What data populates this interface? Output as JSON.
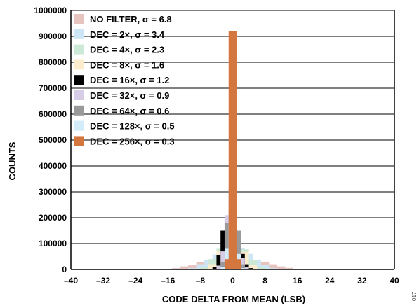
{
  "figure_id": "017",
  "chart_data": {
    "type": "bar",
    "xlabel": "CODE DELTA FROM MEAN  (LSB)",
    "ylabel": "COUNTS",
    "xlim": [
      -40,
      40
    ],
    "ylim": [
      0,
      1000000
    ],
    "x_ticks": [
      -40,
      -32,
      -24,
      -16,
      -8,
      0,
      8,
      16,
      24,
      32,
      40
    ],
    "x_tick_labels": [
      "–40",
      "–32",
      "–24",
      "–16",
      "–8",
      "0",
      "8",
      "16",
      "24",
      "32",
      "40"
    ],
    "y_ticks": [
      0,
      100000,
      200000,
      300000,
      400000,
      500000,
      600000,
      700000,
      800000,
      900000,
      1000000
    ],
    "y_tick_labels": [
      "0",
      "100000",
      "200000",
      "300000",
      "400000",
      "500000",
      "600000",
      "700000",
      "800000",
      "900000",
      "1000000"
    ],
    "grid": "horizontal",
    "legend_position": "top-left",
    "series": [
      {
        "name": "NO FILTER, σ = 6.8",
        "color": "#e8c4c0",
        "x": [
          -16,
          -14,
          -12,
          -10,
          -8,
          -6,
          -4,
          -2,
          0,
          2,
          4,
          6,
          8,
          10,
          12,
          14,
          16
        ],
        "values": [
          2000,
          5000,
          12000,
          18000,
          28000,
          36000,
          42000,
          44000,
          45000,
          44000,
          42000,
          37000,
          30000,
          20000,
          12000,
          6000,
          2000
        ]
      },
      {
        "name": "DEC = 2×, σ = 3.4",
        "color": "#cde6f5",
        "x": [
          -10,
          -8,
          -6,
          -4,
          -2,
          0,
          2,
          4,
          6,
          8,
          10
        ],
        "values": [
          5000,
          20000,
          38000,
          58000,
          80000,
          90000,
          82000,
          60000,
          38000,
          18000,
          5000
        ]
      },
      {
        "name": "DEC = 4×, σ = 2.3",
        "color": "#cce8d6",
        "x": [
          -7,
          -5,
          -3,
          -1,
          1,
          3,
          5,
          7
        ],
        "values": [
          10000,
          40000,
          80000,
          112000,
          110000,
          78000,
          38000,
          10000
        ]
      },
      {
        "name": "DEC = 8×, σ = 1.6",
        "color": "#fbeccd",
        "x": [
          -5,
          -3,
          -1,
          1,
          3,
          5
        ],
        "values": [
          20000,
          70000,
          150000,
          145000,
          68000,
          18000
        ]
      },
      {
        "name": "DEC = 16×, σ = 1.2",
        "color": "#000000",
        "x": [
          -4,
          -3,
          -2,
          -1,
          0,
          1,
          2,
          3,
          4
        ],
        "values": [
          10000,
          55000,
          150000,
          195000,
          0,
          125000,
          60000,
          20000,
          5000
        ]
      },
      {
        "name": "DEC = 32×, σ = 0.9",
        "color": "#d7cce6",
        "x": [
          -3,
          -2,
          -1,
          0,
          1,
          2,
          3
        ],
        "values": [
          15000,
          70000,
          210000,
          250000,
          120000,
          45000,
          10000
        ]
      },
      {
        "name": "DEC = 64×, σ = 0.6",
        "color": "#999999",
        "x": [
          -2,
          -1,
          0,
          1,
          2
        ],
        "values": [
          30000,
          180000,
          315000,
          150000,
          20000
        ]
      },
      {
        "name": "DEC = 128×, σ = 0.5",
        "color": "#d2ecfa",
        "x": [
          -2,
          -1,
          0,
          1,
          2
        ],
        "values": [
          8000,
          80000,
          190000,
          60000,
          5000
        ]
      },
      {
        "name": "DEC = 256×, σ = 0.3",
        "color": "#d4773f",
        "x": [
          -1,
          0,
          1
        ],
        "values": [
          40000,
          920000,
          40000
        ]
      }
    ]
  }
}
